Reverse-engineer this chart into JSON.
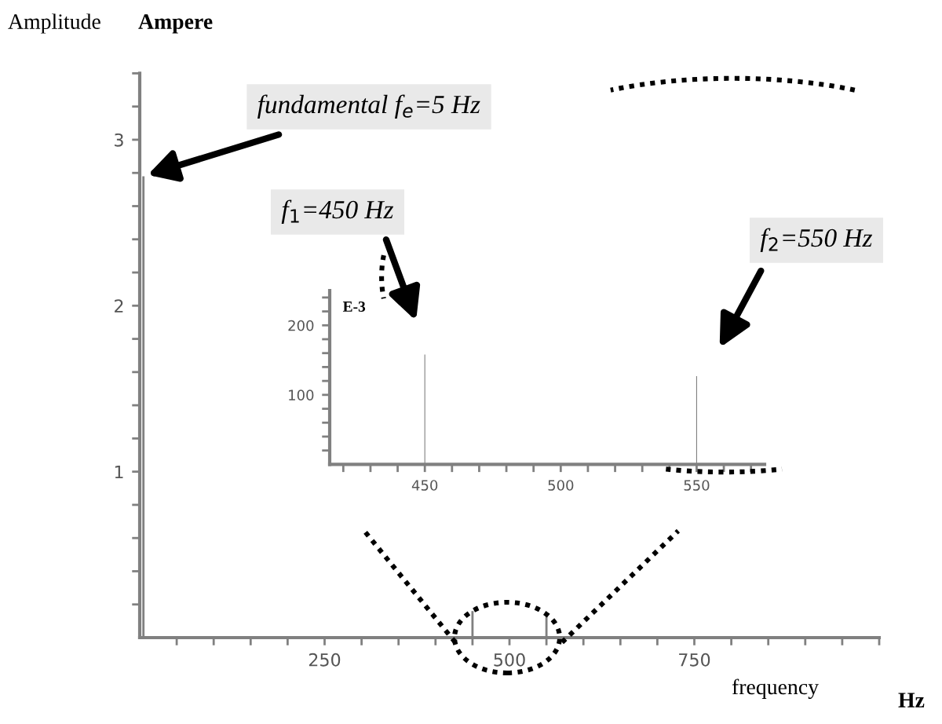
{
  "chart_data": [
    {
      "type": "bar",
      "xlabel": "frequency",
      "ylabel": "Amplitude",
      "x": [
        5,
        450,
        550
      ],
      "series": [
        {
          "color": "#808080",
          "values": [
            2.78,
            0.16,
            0.13
          ]
        }
      ],
      "xlim": [
        0,
        1000
      ],
      "ylim": [
        0,
        3.4
      ],
      "xticks": [
        {
          "value": 50,
          "label": null
        },
        {
          "value": 100,
          "label": null
        },
        {
          "value": 150,
          "label": null
        },
        {
          "value": 200,
          "label": null
        },
        250,
        {
          "value": 300,
          "label": null
        },
        {
          "value": 350,
          "label": null
        },
        {
          "value": 400,
          "label": null
        },
        {
          "value": 450,
          "label": null
        },
        500,
        {
          "value": 550,
          "label": null
        },
        {
          "value": 600,
          "label": null
        },
        {
          "value": 650,
          "label": null
        },
        {
          "value": 700,
          "label": null
        },
        750,
        {
          "value": 800,
          "label": null
        },
        {
          "value": 850,
          "label": null
        },
        {
          "value": 900,
          "label": null
        },
        {
          "value": 950,
          "label": null
        },
        {
          "value": 1000,
          "label": null
        }
      ],
      "yticks": [
        {
          "value": 0.2,
          "label": null
        },
        {
          "value": 0.4,
          "label": null
        },
        {
          "value": 0.6,
          "label": null
        },
        {
          "value": 0.8,
          "label": null
        },
        1,
        {
          "value": 1.2,
          "label": null
        },
        {
          "value": 1.4,
          "label": null
        },
        {
          "value": 1.6,
          "label": null
        },
        {
          "value": 1.8,
          "label": null
        },
        2,
        {
          "value": 2.2,
          "label": null
        },
        {
          "value": 2.4,
          "label": null
        },
        {
          "value": 2.6,
          "label": null
        },
        {
          "value": 2.8,
          "label": null
        },
        3,
        {
          "value": 3.2,
          "label": null
        },
        {
          "value": 3.4,
          "label": null
        }
      ],
      "annotations": [
        "Ampere",
        "Hz",
        {
          "text": "fundamental f$_{e}$=5 Hz",
          "x": 5,
          "y": 2.78
        }
      ],
      "grid": false,
      "legend": false
    },
    {
      "type": "bar",
      "ylabel": "E-3",
      "x": [
        450,
        550
      ],
      "series": [
        {
          "color": "#808080",
          "values": [
            158,
            127
          ]
        }
      ],
      "xlim": [
        415,
        575
      ],
      "ylim": [
        0,
        250
      ],
      "xticks": [
        {
          "value": 420,
          "label": null
        },
        {
          "value": 430,
          "label": null
        },
        {
          "value": 440,
          "label": null
        },
        450,
        {
          "value": 460,
          "label": null
        },
        {
          "value": 470,
          "label": null
        },
        {
          "value": 480,
          "label": null
        },
        {
          "value": 490,
          "label": null
        },
        500,
        {
          "value": 510,
          "label": null
        },
        {
          "value": 520,
          "label": null
        },
        {
          "value": 530,
          "label": null
        },
        {
          "value": 540,
          "label": null
        },
        550,
        {
          "value": 560,
          "label": null
        },
        {
          "value": 570,
          "label": null
        }
      ],
      "yticks": [
        {
          "value": 20,
          "label": null
        },
        {
          "value": 40,
          "label": null
        },
        {
          "value": 60,
          "label": null
        },
        {
          "value": 80,
          "label": null
        },
        100,
        {
          "value": 120,
          "label": null
        },
        {
          "value": 140,
          "label": null
        },
        {
          "value": 160,
          "label": null
        },
        {
          "value": 180,
          "label": null
        },
        200,
        {
          "value": 220,
          "label": null
        },
        {
          "value": 240,
          "label": null
        }
      ],
      "annotations": [
        "f$_{1}$=450 Hz",
        "f$_{2}$=550 Hz"
      ],
      "grid": false,
      "legend": false
    }
  ]
}
